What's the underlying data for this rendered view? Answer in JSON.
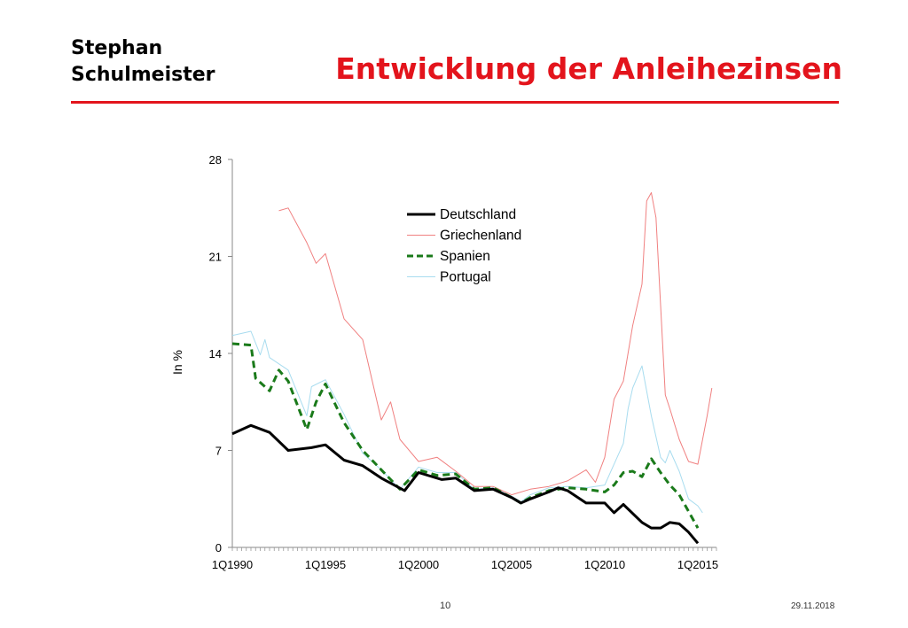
{
  "header": {
    "author_line1": "Stephan",
    "author_line2": "Schulmeister",
    "title": "Entwicklung der Anleihezinsen"
  },
  "footer": {
    "page_number": "10",
    "date": "29.11.2018"
  },
  "colors": {
    "accent": "#e3141c",
    "Deutschland": "#000000",
    "Griechenland": "#f08080",
    "Spanien": "#1a7a1a",
    "Portugal": "#a8dcef"
  },
  "chart_data": {
    "type": "line",
    "title": "",
    "xlabel": "",
    "ylabel": "In %",
    "ylim": [
      0,
      28
    ],
    "yticks": [
      0,
      7,
      14,
      21,
      28
    ],
    "xtick_labels": [
      "1Q1990",
      "1Q1995",
      "1Q2000",
      "1Q2005",
      "1Q2010",
      "1Q2015"
    ],
    "x_start": "1Q1990",
    "x_end": "4Q2015",
    "legend_position": "top-center",
    "grid": false,
    "series": [
      {
        "name": "Deutschland",
        "style": "solid-thick",
        "points": [
          [
            "1Q1990",
            8.2
          ],
          [
            "1Q1991",
            8.8
          ],
          [
            "1Q1992",
            8.3
          ],
          [
            "1Q1993",
            7.0
          ],
          [
            "2Q1994",
            7.2
          ],
          [
            "1Q1995",
            7.4
          ],
          [
            "1Q1996",
            6.3
          ],
          [
            "1Q1997",
            5.9
          ],
          [
            "1Q1998",
            5.0
          ],
          [
            "2Q1999",
            4.1
          ],
          [
            "1Q2000",
            5.4
          ],
          [
            "2Q2001",
            4.9
          ],
          [
            "1Q2002",
            5.0
          ],
          [
            "1Q2003",
            4.1
          ],
          [
            "1Q2004",
            4.2
          ],
          [
            "1Q2005",
            3.6
          ],
          [
            "3Q2005",
            3.2
          ],
          [
            "1Q2006",
            3.5
          ],
          [
            "1Q2007",
            4.0
          ],
          [
            "3Q2007",
            4.3
          ],
          [
            "1Q2008",
            4.1
          ],
          [
            "1Q2009",
            3.2
          ],
          [
            "1Q2010",
            3.2
          ],
          [
            "3Q2010",
            2.5
          ],
          [
            "1Q2011",
            3.1
          ],
          [
            "1Q2012",
            1.8
          ],
          [
            "3Q2012",
            1.4
          ],
          [
            "1Q2013",
            1.4
          ],
          [
            "3Q2013",
            1.8
          ],
          [
            "1Q2014",
            1.7
          ],
          [
            "3Q2014",
            1.1
          ],
          [
            "1Q2015",
            0.3
          ]
        ]
      },
      {
        "name": "Griechenland",
        "style": "solid-thin",
        "points": [
          [
            "3Q1992",
            24.3
          ],
          [
            "1Q1993",
            24.5
          ],
          [
            "1Q1994",
            22.0
          ],
          [
            "3Q1994",
            20.5
          ],
          [
            "1Q1995",
            21.2
          ],
          [
            "1Q1996",
            16.5
          ],
          [
            "1Q1997",
            15.0
          ],
          [
            "1Q1998",
            9.2
          ],
          [
            "3Q1998",
            10.5
          ],
          [
            "1Q1999",
            7.8
          ],
          [
            "1Q2000",
            6.2
          ],
          [
            "1Q2001",
            6.5
          ],
          [
            "1Q2002",
            5.5
          ],
          [
            "1Q2003",
            4.4
          ],
          [
            "1Q2004",
            4.4
          ],
          [
            "1Q2005",
            3.8
          ],
          [
            "1Q2006",
            4.2
          ],
          [
            "1Q2007",
            4.4
          ],
          [
            "1Q2008",
            4.8
          ],
          [
            "1Q2009",
            5.6
          ],
          [
            "3Q2009",
            4.7
          ],
          [
            "1Q2010",
            6.5
          ],
          [
            "3Q2010",
            10.7
          ],
          [
            "1Q2011",
            12.0
          ],
          [
            "3Q2011",
            16.0
          ],
          [
            "1Q2012",
            19.0
          ],
          [
            "2Q2012",
            25.0
          ],
          [
            "3Q2012",
            25.6
          ],
          [
            "4Q2012",
            23.8
          ],
          [
            "2Q2013",
            11.0
          ],
          [
            "3Q2013",
            10.0
          ],
          [
            "1Q2014",
            7.8
          ],
          [
            "3Q2014",
            6.2
          ],
          [
            "1Q2015",
            6.0
          ],
          [
            "3Q2015",
            9.5
          ],
          [
            "4Q2015",
            11.5
          ]
        ]
      },
      {
        "name": "Spanien",
        "style": "dashed",
        "points": [
          [
            "1Q1990",
            14.7
          ],
          [
            "1Q1991",
            14.6
          ],
          [
            "2Q1991",
            12.2
          ],
          [
            "1Q1992",
            11.3
          ],
          [
            "3Q1992",
            12.8
          ],
          [
            "1Q1993",
            12.0
          ],
          [
            "1Q1994",
            8.5
          ],
          [
            "3Q1994",
            10.5
          ],
          [
            "1Q1995",
            11.8
          ],
          [
            "1Q1996",
            9.0
          ],
          [
            "1Q1997",
            7.0
          ],
          [
            "1Q1998",
            5.6
          ],
          [
            "1Q1999",
            4.2
          ],
          [
            "1Q2000",
            5.6
          ],
          [
            "1Q2001",
            5.2
          ],
          [
            "1Q2002",
            5.3
          ],
          [
            "1Q2003",
            4.2
          ],
          [
            "1Q2004",
            4.3
          ],
          [
            "1Q2005",
            3.6
          ],
          [
            "3Q2005",
            3.2
          ],
          [
            "1Q2006",
            3.6
          ],
          [
            "1Q2007",
            4.1
          ],
          [
            "1Q2008",
            4.3
          ],
          [
            "1Q2009",
            4.2
          ],
          [
            "1Q2010",
            4.0
          ],
          [
            "3Q2010",
            4.5
          ],
          [
            "1Q2011",
            5.4
          ],
          [
            "3Q2011",
            5.5
          ],
          [
            "1Q2012",
            5.1
          ],
          [
            "3Q2012",
            6.4
          ],
          [
            "1Q2013",
            5.4
          ],
          [
            "3Q2013",
            4.5
          ],
          [
            "1Q2014",
            3.8
          ],
          [
            "3Q2014",
            2.6
          ],
          [
            "1Q2015",
            1.4
          ]
        ]
      },
      {
        "name": "Portugal",
        "style": "solid-thin",
        "points": [
          [
            "1Q1990",
            15.3
          ],
          [
            "1Q1991",
            15.6
          ],
          [
            "3Q1991",
            13.9
          ],
          [
            "4Q1991",
            15.0
          ],
          [
            "1Q1992",
            13.7
          ],
          [
            "1Q1993",
            12.8
          ],
          [
            "1Q1994",
            9.5
          ],
          [
            "2Q1994",
            11.6
          ],
          [
            "1Q1995",
            12.1
          ],
          [
            "1Q1996",
            9.6
          ],
          [
            "1Q1997",
            6.8
          ],
          [
            "1Q1998",
            5.6
          ],
          [
            "1Q1999",
            4.2
          ],
          [
            "1Q2000",
            5.8
          ],
          [
            "1Q2001",
            5.4
          ],
          [
            "1Q2002",
            5.4
          ],
          [
            "1Q2003",
            4.2
          ],
          [
            "1Q2004",
            4.3
          ],
          [
            "1Q2005",
            3.7
          ],
          [
            "3Q2005",
            3.3
          ],
          [
            "1Q2006",
            3.8
          ],
          [
            "1Q2007",
            4.3
          ],
          [
            "1Q2008",
            4.4
          ],
          [
            "1Q2009",
            4.3
          ],
          [
            "1Q2010",
            4.5
          ],
          [
            "3Q2010",
            6.0
          ],
          [
            "1Q2011",
            7.5
          ],
          [
            "2Q2011",
            10.0
          ],
          [
            "3Q2011",
            11.5
          ],
          [
            "1Q2012",
            13.1
          ],
          [
            "3Q2012",
            9.5
          ],
          [
            "1Q2013",
            6.5
          ],
          [
            "2Q2013",
            6.1
          ],
          [
            "3Q2013",
            7.0
          ],
          [
            "1Q2014",
            5.5
          ],
          [
            "3Q2014",
            3.5
          ],
          [
            "1Q2015",
            3.0
          ],
          [
            "2Q2015",
            2.5
          ]
        ]
      }
    ]
  }
}
